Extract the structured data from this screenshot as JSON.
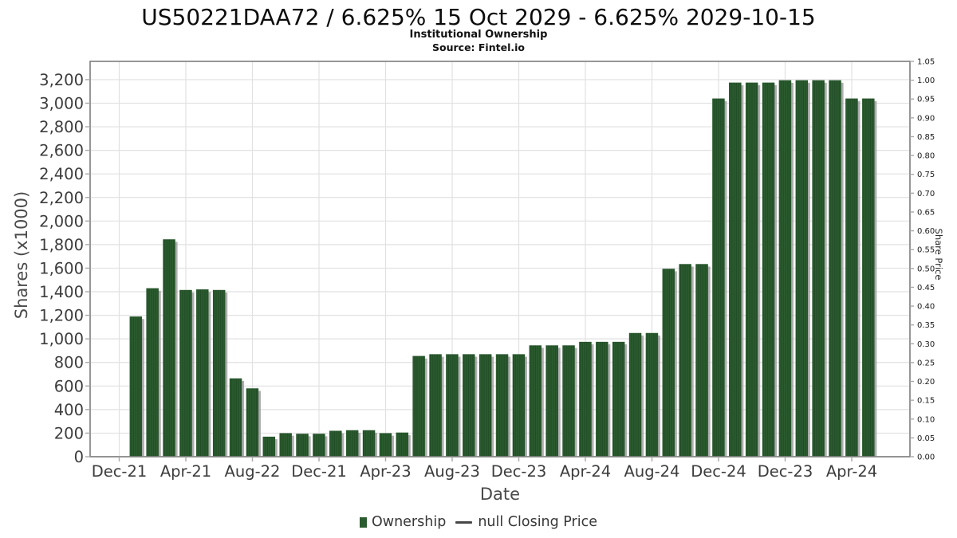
{
  "header": {
    "title": "US50221DAA72 / 6.625% 15 Oct 2029 - 6.625% 2029-10-15",
    "subtitle": "Institutional Ownership",
    "source": "Source: Fintel.io"
  },
  "axes": {
    "left_label": "Shares (x1000)",
    "right_label": "Share Price",
    "x_label": "Date"
  },
  "legend": {
    "ownership_label": "Ownership",
    "price_label": "null Closing Price"
  },
  "colors": {
    "bar": "#2b5c2f",
    "bar_stripe": "#224e27",
    "bar_shadow": "#9a9a9a",
    "grid": "#e1e1e1",
    "plot_border": "#7d7d7d",
    "axis_line": "#8a8a8a",
    "tick_mark": "#a8a8a8",
    "tick_text": "#3d3d3d",
    "right_tick_text": "#1a1a1a",
    "legend_line": "#474747"
  },
  "chart_data": {
    "type": "bar",
    "title": "US50221DAA72 / 6.625% 15 Oct 2029 - 6.625% 2029-10-15",
    "subtitle": "Institutional Ownership",
    "source": "Source: Fintel.io",
    "xlabel": "Date",
    "ylabel_left": "Shares (x1000)",
    "ylabel_right": "Share Price",
    "grid": true,
    "legend_position": "bottom",
    "ylim_left": [
      0,
      3355
    ],
    "ylim_right": [
      0,
      1.05
    ],
    "x_tick_labels": [
      "Dec-21",
      "Apr-21",
      "Aug-22",
      "Dec-21",
      "Apr-23",
      "Aug-23",
      "Dec-23",
      "Apr-24",
      "Aug-24",
      "Dec-24",
      "Dec-23",
      "Apr-24"
    ],
    "y_left_ticks": [
      "0",
      "200",
      "400",
      "600",
      "800",
      "1,000",
      "1,200",
      "1,400",
      "1,600",
      "1,800",
      "2,000",
      "2,200",
      "2,400",
      "2,600",
      "2,800",
      "3,000",
      "3,200"
    ],
    "y_right_ticks": [
      "0.00",
      "0.05",
      "0.10",
      "0.15",
      "0.20",
      "0.25",
      "0.30",
      "0.35",
      "0.40",
      "0.45",
      "0.50",
      "0.55",
      "0.60",
      "0.65",
      "0.70",
      "0.75",
      "0.80",
      "0.85",
      "0.90",
      "0.95",
      "1.00",
      "1.05"
    ],
    "series": [
      {
        "name": "Ownership",
        "type": "bar",
        "color": "#2b5c2f",
        "units": "shares x1000",
        "values": [
          1190,
          1430,
          1845,
          1415,
          1420,
          1415,
          665,
          580,
          170,
          200,
          195,
          195,
          220,
          225,
          225,
          200,
          205,
          855,
          870,
          870,
          870,
          870,
          870,
          870,
          945,
          945,
          945,
          975,
          975,
          975,
          1050,
          1050,
          1595,
          1635,
          1635,
          3040,
          3175,
          3175,
          3175,
          3195,
          3195,
          3195,
          3195,
          3040,
          3040
        ]
      },
      {
        "name": "null Closing Price",
        "type": "line",
        "color": "#474747",
        "values": []
      }
    ]
  }
}
